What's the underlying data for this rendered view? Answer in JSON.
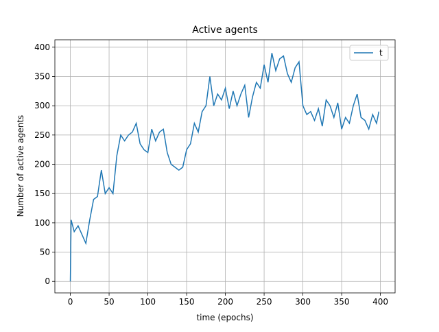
{
  "chart_data": {
    "type": "line",
    "title": "Active agents",
    "xlabel": "time (epochs)",
    "ylabel": "Number of active agents",
    "x": [
      0,
      1,
      5,
      10,
      15,
      20,
      25,
      30,
      35,
      40,
      45,
      50,
      55,
      60,
      65,
      70,
      75,
      80,
      85,
      90,
      95,
      100,
      105,
      110,
      115,
      120,
      125,
      130,
      135,
      140,
      145,
      150,
      155,
      160,
      165,
      170,
      175,
      180,
      185,
      190,
      195,
      200,
      205,
      210,
      215,
      220,
      225,
      230,
      235,
      240,
      245,
      250,
      255,
      260,
      265,
      270,
      275,
      280,
      285,
      290,
      295,
      300,
      305,
      310,
      315,
      320,
      325,
      330,
      335,
      340,
      345,
      350,
      355,
      360,
      365,
      370,
      375,
      380,
      385,
      390,
      395,
      398
    ],
    "series": [
      {
        "name": "t",
        "color": "#1f77b4",
        "values": [
          0,
          105,
          85,
          95,
          80,
          65,
          105,
          140,
          145,
          190,
          150,
          160,
          150,
          215,
          250,
          240,
          250,
          255,
          270,
          235,
          225,
          220,
          260,
          240,
          255,
          260,
          220,
          200,
          195,
          190,
          195,
          225,
          235,
          270,
          255,
          290,
          300,
          350,
          300,
          320,
          310,
          330,
          295,
          325,
          300,
          320,
          335,
          280,
          315,
          340,
          330,
          370,
          340,
          390,
          360,
          380,
          385,
          355,
          340,
          365,
          375,
          300,
          285,
          290,
          275,
          295,
          265,
          310,
          300,
          280,
          305,
          260,
          280,
          270,
          300,
          320,
          280,
          275,
          260,
          285,
          270,
          290
        ]
      }
    ],
    "xlim": [
      -19.95,
      418.95
    ],
    "ylim": [
      -19.65,
      412.65
    ],
    "xticks": [
      0,
      50,
      100,
      150,
      200,
      250,
      300,
      350,
      400
    ],
    "yticks": [
      0,
      50,
      100,
      150,
      200,
      250,
      300,
      350,
      400
    ],
    "grid": true,
    "legend": "upper right"
  }
}
